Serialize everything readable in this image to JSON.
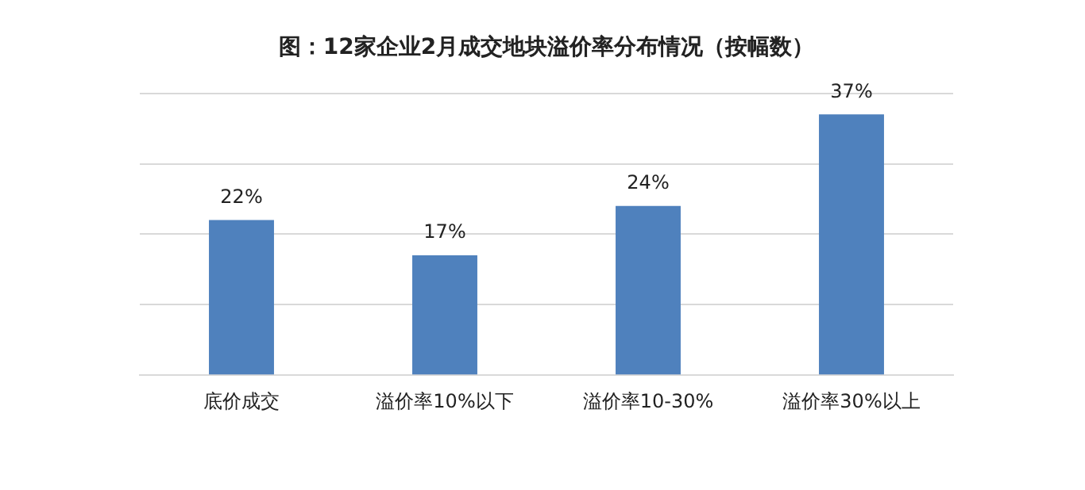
{
  "chart_data": {
    "type": "bar",
    "title": "图：12家企业2月成交地块溢价率分布情况（按幅数）",
    "categories": [
      "底价成交",
      "溢价率10%以下",
      "溢价率10-30%",
      "溢价率30%以上"
    ],
    "values": [
      22,
      17,
      24,
      37
    ],
    "color": "#4f81bd",
    "value_labels": [
      "22%",
      "17%",
      "24%",
      "37%"
    ],
    "ylim": [
      0,
      40
    ],
    "yticks": [
      {
        "value": 0,
        "label": null
      },
      {
        "value": 10,
        "label": null
      },
      {
        "value": 20,
        "label": null
      },
      {
        "value": 30,
        "label": null
      },
      {
        "value": 40,
        "label": null
      }
    ],
    "grid": "y",
    "tick_labels": "x",
    "legend": false
  }
}
